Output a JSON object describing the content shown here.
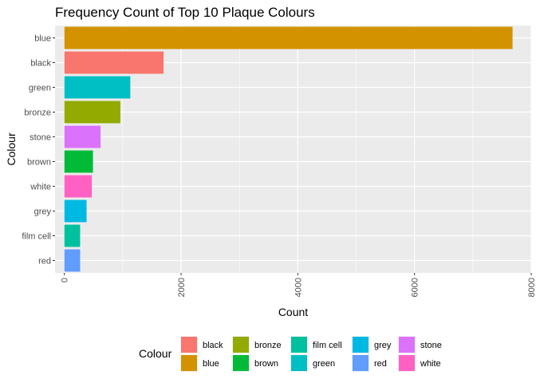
{
  "chart_data": {
    "type": "bar",
    "orientation": "horizontal",
    "title": "Frequency Count of Top 10 Plaque Colours",
    "xlabel": "Count",
    "ylabel": "Colour",
    "categories": [
      "blue",
      "black",
      "green",
      "bronze",
      "stone",
      "brown",
      "white",
      "grey",
      "film cell",
      "red"
    ],
    "values": [
      7680,
      1700,
      1130,
      960,
      620,
      490,
      470,
      380,
      270,
      270
    ],
    "colors": [
      "#D39200",
      "#F8766D",
      "#00BFC4",
      "#93AA00",
      "#DB72FB",
      "#00BA38",
      "#FF61C3",
      "#00B9E3",
      "#00C19F",
      "#619CFF"
    ],
    "xlim": [
      -160,
      8000
    ],
    "xticks": [
      0,
      2000,
      4000,
      6000,
      8000
    ],
    "grid": true,
    "legend": {
      "title": "Colour",
      "placement": "bottom",
      "items": [
        {
          "label": "black",
          "color": "#F8766D"
        },
        {
          "label": "blue",
          "color": "#D39200"
        },
        {
          "label": "bronze",
          "color": "#93AA00"
        },
        {
          "label": "brown",
          "color": "#00BA38"
        },
        {
          "label": "film cell",
          "color": "#00C19F"
        },
        {
          "label": "green",
          "color": "#00BFC4"
        },
        {
          "label": "grey",
          "color": "#00B9E3"
        },
        {
          "label": "red",
          "color": "#619CFF"
        },
        {
          "label": "stone",
          "color": "#DB72FB"
        },
        {
          "label": "white",
          "color": "#FF61C3"
        }
      ]
    }
  }
}
